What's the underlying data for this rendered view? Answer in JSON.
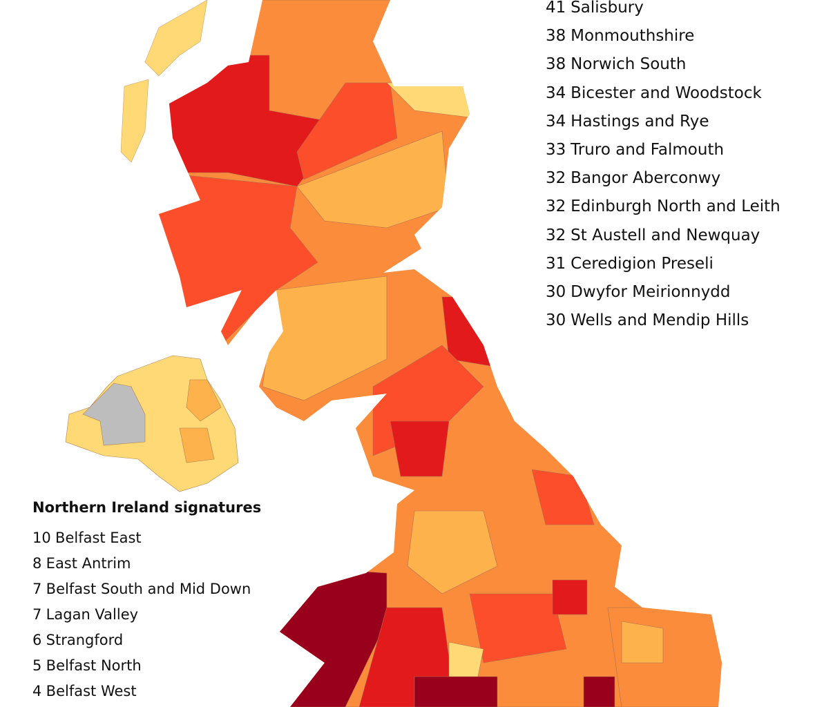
{
  "top_list": {
    "items": [
      {
        "count": 41,
        "name": "Salisbury"
      },
      {
        "count": 38,
        "name": "Monmouthshire"
      },
      {
        "count": 38,
        "name": "Norwich South"
      },
      {
        "count": 34,
        "name": "Bicester and Woodstock"
      },
      {
        "count": 34,
        "name": "Hastings and Rye"
      },
      {
        "count": 33,
        "name": "Truro and Falmouth"
      },
      {
        "count": 32,
        "name": "Bangor Aberconwy"
      },
      {
        "count": 32,
        "name": "Edinburgh North and Leith"
      },
      {
        "count": 32,
        "name": "St Austell and Newquay"
      },
      {
        "count": 31,
        "name": "Ceredigion Preseli"
      },
      {
        "count": 30,
        "name": "Dwyfor Meirionnydd"
      },
      {
        "count": 30,
        "name": "Wells and Mendip Hills"
      }
    ]
  },
  "ni_list": {
    "title": "Northern Ireland signatures",
    "items": [
      {
        "count": 10,
        "name": "Belfast East"
      },
      {
        "count": 8,
        "name": "East Antrim"
      },
      {
        "count": 7,
        "name": "Belfast South and Mid Down"
      },
      {
        "count": 7,
        "name": "Lagan Valley"
      },
      {
        "count": 6,
        "name": "Strangford"
      },
      {
        "count": 5,
        "name": "Belfast North"
      },
      {
        "count": 4,
        "name": "Belfast West"
      }
    ]
  }
}
